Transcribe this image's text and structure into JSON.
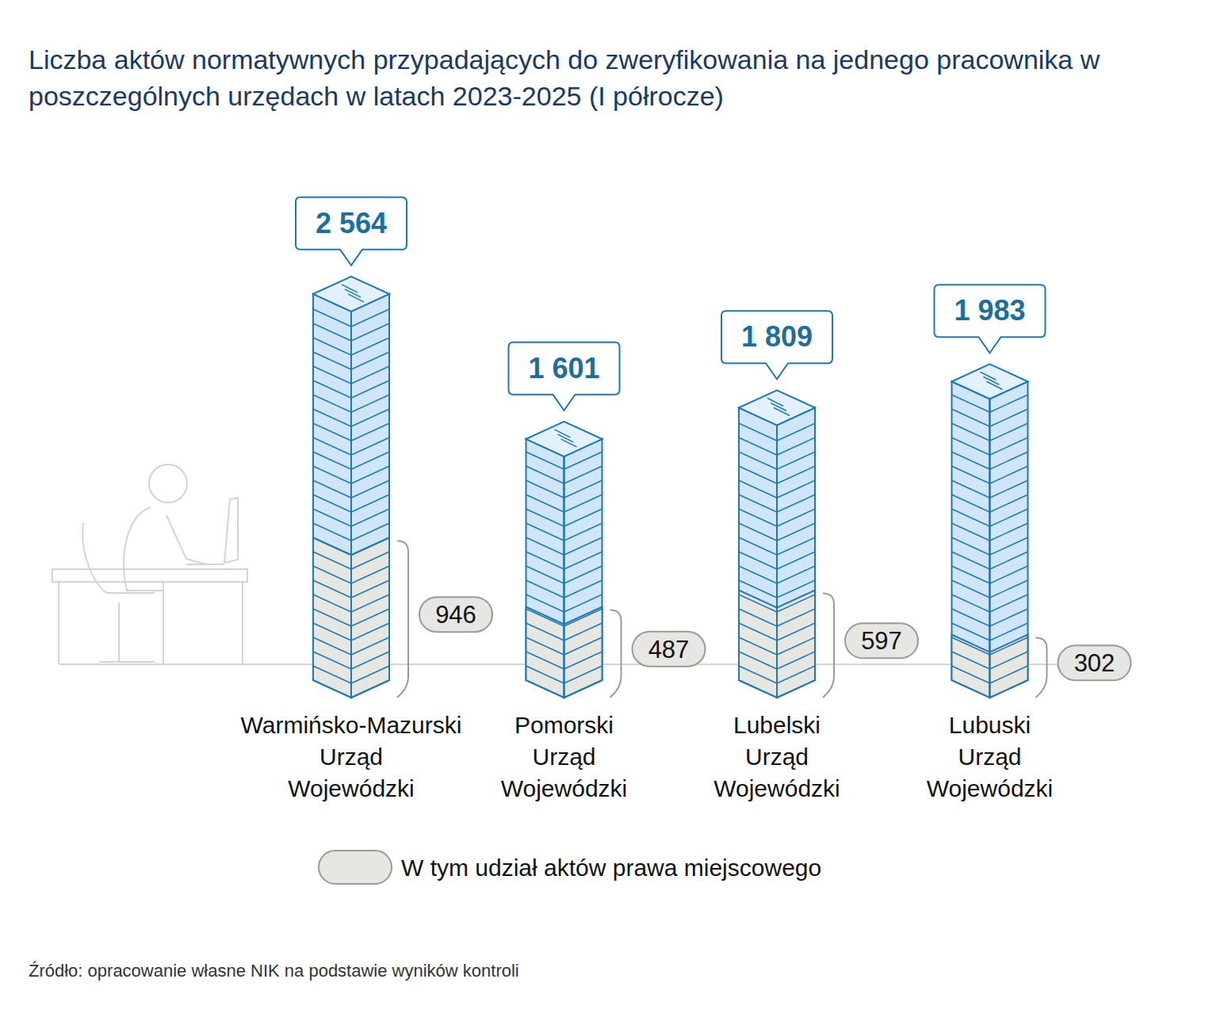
{
  "chart_data": {
    "type": "bar",
    "title": "Liczba aktów normatywnych przypadających do zweryfikowania na jednego pracownika w poszczególnych urzędach w latach 2023-2025 (I półrocze)",
    "categories": [
      "Warmińsko-Mazurski Urząd Wojewódzki",
      "Pomorski Urząd Wojewódzki",
      "Lubelski Urząd Wojewódzki",
      "Lubuski Urząd Wojewódzki"
    ],
    "series": [
      {
        "color": "#cfe6f8",
        "values": [
          2564,
          1601,
          1809,
          1983
        ],
        "value_labels": [
          "2 564",
          "1 601",
          "1 809",
          "1 983"
        ]
      },
      {
        "name": "W tym udział aktów prawa miejscowego",
        "color": "#e6e6e3",
        "values": [
          946,
          487,
          597,
          302
        ]
      }
    ],
    "stacked": false,
    "data_labels": true,
    "tick_labels": false,
    "grid": false,
    "legend": "bottom",
    "ylim": [
      0,
      2600
    ],
    "source": "Źródło: opracowanie własne NIK na podstawie wyników kontroli"
  }
}
